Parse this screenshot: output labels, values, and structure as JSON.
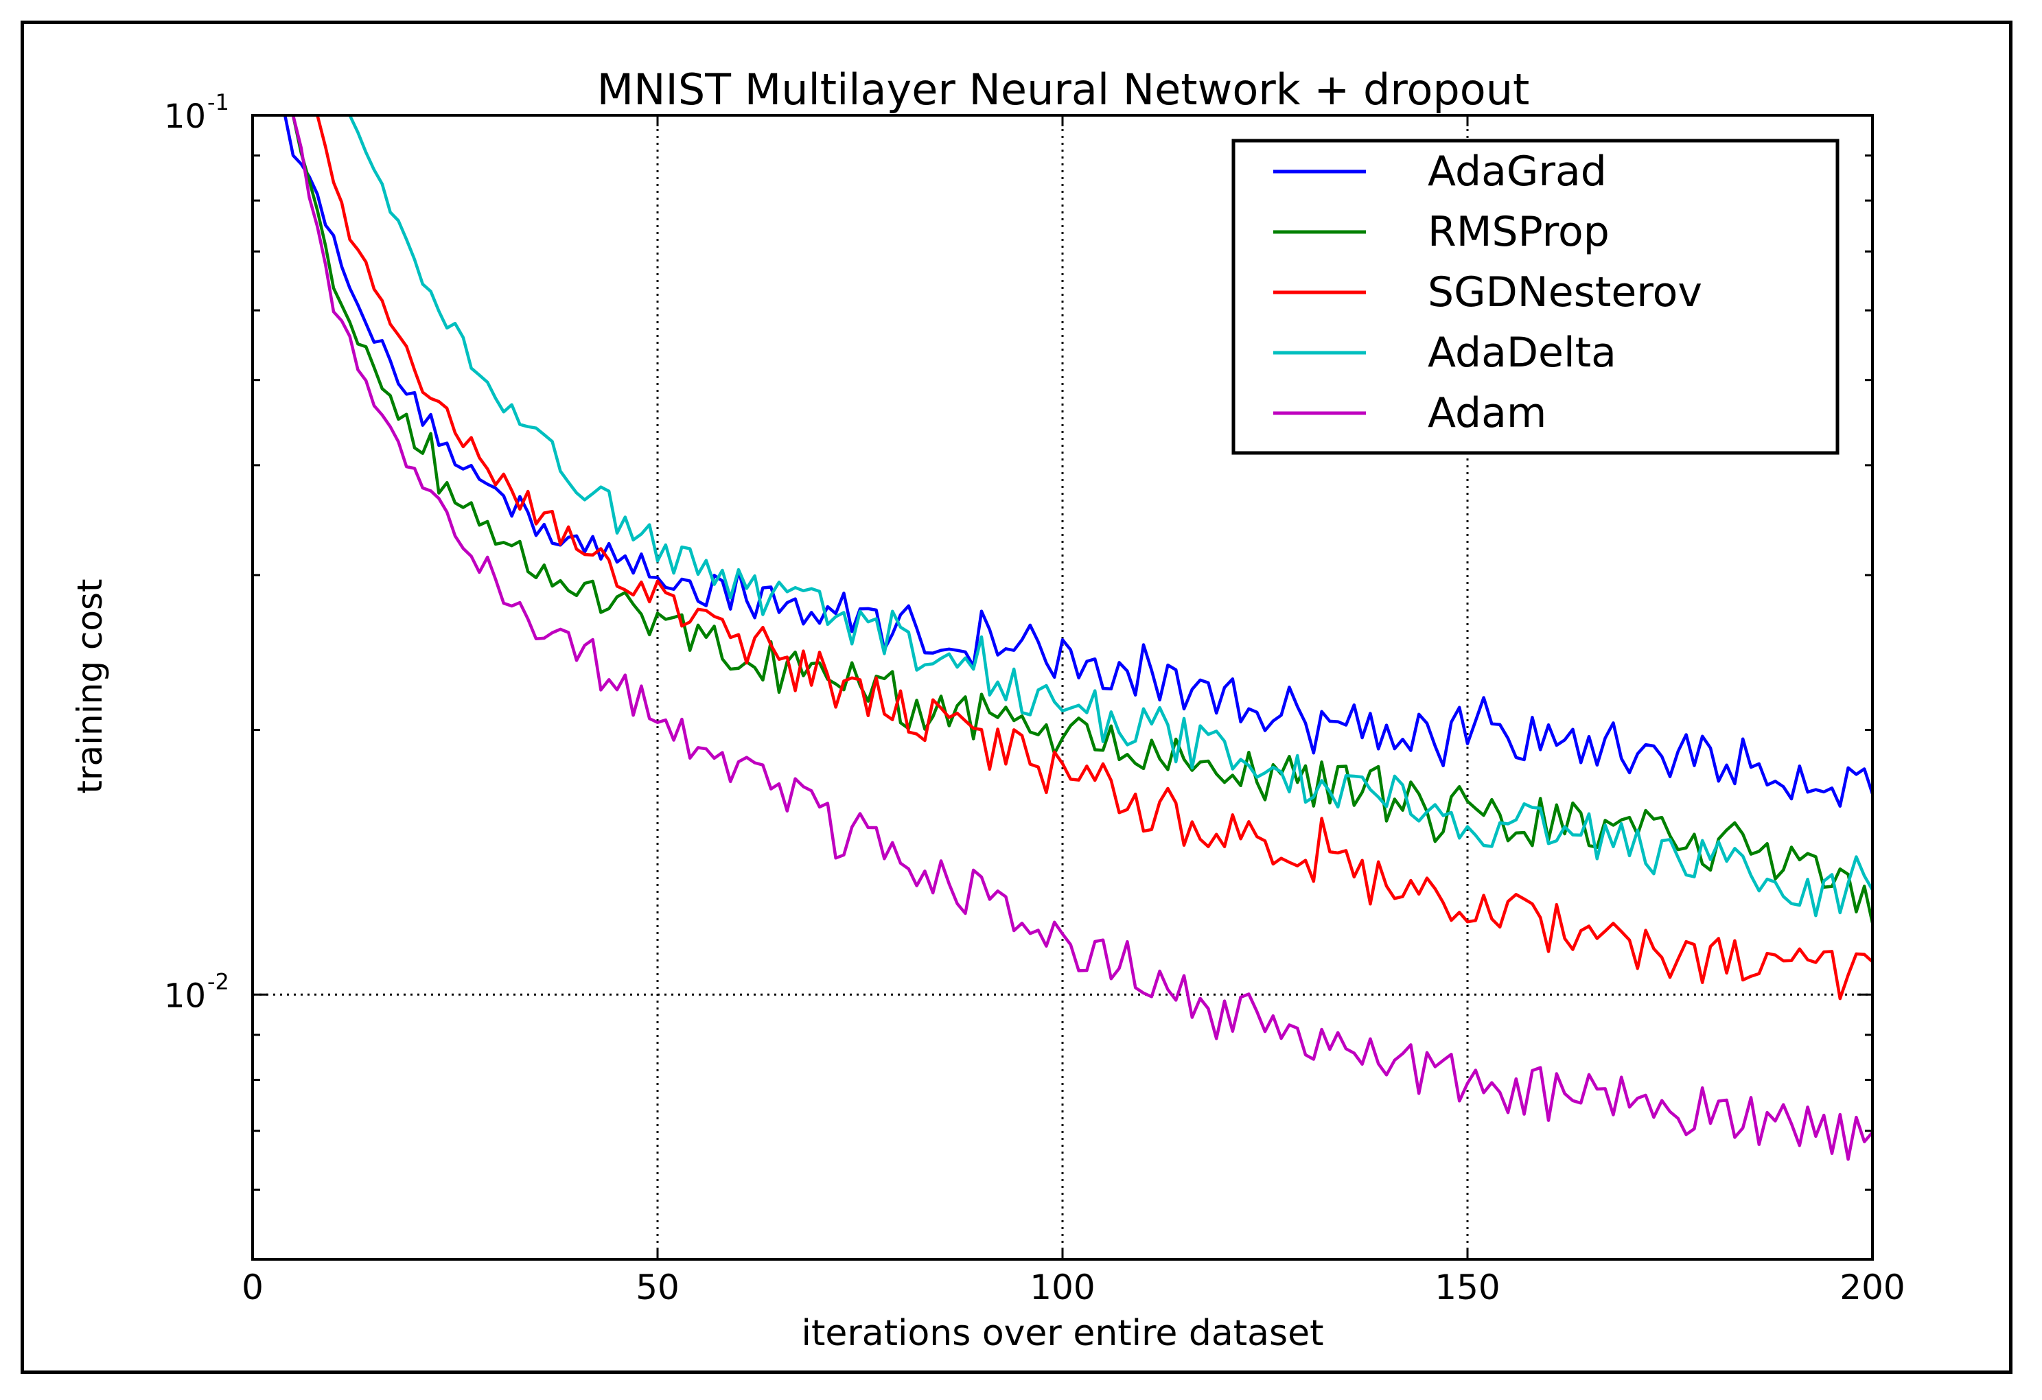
{
  "chart_data": {
    "type": "line",
    "title": "MNIST Multilayer Neural Network + dropout",
    "xlabel": "iterations over entire dataset",
    "ylabel": "training cost",
    "xlim": [
      0,
      200
    ],
    "ylim": [
      0.005,
      0.1
    ],
    "yscale": "log",
    "grid": "major, dotted",
    "legend_position": "top-right",
    "x_ticks": [
      {
        "value": 0,
        "label": "0"
      },
      {
        "value": 50,
        "label": "50"
      },
      {
        "value": 100,
        "label": "100"
      },
      {
        "value": 150,
        "label": "150"
      },
      {
        "value": 200,
        "label": "200"
      }
    ],
    "y_ticks": [
      {
        "value": 0.1,
        "base": "10",
        "exp": "-1"
      },
      {
        "value": 0.01,
        "base": "10",
        "exp": "-2"
      }
    ],
    "series": [
      {
        "name": "AdaGrad",
        "color": "#0000ff",
        "x": [
          4,
          10,
          15,
          20,
          25,
          30,
          35,
          40,
          45,
          50,
          55,
          60,
          65,
          70,
          75,
          80,
          85,
          90,
          95,
          100,
          105,
          110,
          115,
          120,
          125,
          130,
          135,
          140,
          145,
          150,
          155,
          160,
          165,
          170,
          175,
          180,
          185,
          190,
          195,
          200
        ],
        "y": [
          0.1,
          0.072,
          0.056,
          0.047,
          0.041,
          0.037,
          0.0345,
          0.0325,
          0.031,
          0.0305,
          0.0295,
          0.0285,
          0.0278,
          0.0272,
          0.0268,
          0.0262,
          0.0255,
          0.0248,
          0.0243,
          0.024,
          0.0233,
          0.0228,
          0.0222,
          0.0218,
          0.0213,
          0.0208,
          0.0205,
          0.0202,
          0.02,
          0.0198,
          0.0196,
          0.0194,
          0.0192,
          0.019,
          0.0188,
          0.0185,
          0.0182,
          0.0178,
          0.0176,
          0.0172
        ]
      },
      {
        "name": "RMSProp",
        "color": "#008000",
        "x": [
          5,
          10,
          15,
          20,
          25,
          30,
          35,
          40,
          45,
          50,
          55,
          60,
          65,
          70,
          75,
          80,
          85,
          90,
          95,
          100,
          105,
          110,
          115,
          120,
          125,
          130,
          135,
          140,
          145,
          150,
          155,
          160,
          165,
          170,
          175,
          180,
          185,
          190,
          195,
          200
        ],
        "y": [
          0.1,
          0.065,
          0.051,
          0.043,
          0.037,
          0.0335,
          0.031,
          0.029,
          0.0275,
          0.0262,
          0.0252,
          0.0243,
          0.0235,
          0.0228,
          0.0222,
          0.0217,
          0.0212,
          0.0207,
          0.0203,
          0.02,
          0.0195,
          0.019,
          0.0186,
          0.0182,
          0.0178,
          0.0175,
          0.0172,
          0.0168,
          0.0165,
          0.0162,
          0.016,
          0.0157,
          0.0155,
          0.0152,
          0.015,
          0.0148,
          0.0146,
          0.0144,
          0.0141,
          0.0128
        ]
      },
      {
        "name": "SGDNesterov",
        "color": "#ff0000",
        "x": [
          8,
          12,
          17,
          22,
          27,
          32,
          37,
          42,
          47,
          52,
          57,
          62,
          67,
          72,
          77,
          82,
          87,
          92,
          97,
          102,
          107,
          112,
          117,
          122,
          127,
          132,
          137,
          142,
          147,
          152,
          157,
          162,
          167,
          172,
          177,
          182,
          187,
          192,
          197,
          200
        ],
        "y": [
          0.1,
          0.073,
          0.058,
          0.048,
          0.042,
          0.0375,
          0.034,
          0.0315,
          0.0295,
          0.0278,
          0.0262,
          0.0248,
          0.0235,
          0.0225,
          0.0215,
          0.0207,
          0.0198,
          0.019,
          0.0183,
          0.0176,
          0.0168,
          0.0162,
          0.0156,
          0.015,
          0.0145,
          0.014,
          0.0135,
          0.0131,
          0.0127,
          0.0124,
          0.0121,
          0.0118,
          0.0115,
          0.0113,
          0.0111,
          0.0109,
          0.0107,
          0.0106,
          0.0106,
          0.0105
        ]
      },
      {
        "name": "AdaDelta",
        "color": "#00bfbf",
        "x": [
          12,
          17,
          22,
          27,
          32,
          37,
          42,
          47,
          52,
          57,
          62,
          67,
          72,
          77,
          82,
          87,
          92,
          97,
          102,
          107,
          112,
          117,
          122,
          127,
          132,
          137,
          142,
          147,
          152,
          157,
          162,
          167,
          172,
          177,
          182,
          187,
          192,
          197,
          200
        ],
        "y": [
          0.1,
          0.078,
          0.063,
          0.053,
          0.046,
          0.041,
          0.0372,
          0.034,
          0.0315,
          0.0297,
          0.0285,
          0.0275,
          0.0265,
          0.0255,
          0.0245,
          0.0236,
          0.0228,
          0.022,
          0.0212,
          0.0205,
          0.0198,
          0.0192,
          0.0186,
          0.018,
          0.0175,
          0.017,
          0.0166,
          0.0162,
          0.0158,
          0.0155,
          0.0152,
          0.0149,
          0.0146,
          0.0143,
          0.014,
          0.0137,
          0.0134,
          0.0131,
          0.0126
        ]
      },
      {
        "name": "Adam",
        "color": "#bf00bf",
        "x": [
          5,
          10,
          15,
          20,
          25,
          30,
          35,
          40,
          45,
          50,
          55,
          60,
          65,
          70,
          75,
          80,
          85,
          90,
          95,
          100,
          105,
          110,
          115,
          120,
          125,
          130,
          135,
          140,
          145,
          150,
          155,
          160,
          165,
          170,
          175,
          180,
          185,
          190,
          195,
          200
        ],
        "y": [
          0.1,
          0.061,
          0.047,
          0.039,
          0.0335,
          0.0295,
          0.0265,
          0.0242,
          0.0223,
          0.0207,
          0.0193,
          0.018,
          0.0169,
          0.0159,
          0.015,
          0.0142,
          0.0135,
          0.0128,
          0.0122,
          0.0116,
          0.0111,
          0.0106,
          0.0101,
          0.0097,
          0.0093,
          0.009,
          0.0087,
          0.0084,
          0.0082,
          0.008,
          0.0078,
          0.0077,
          0.0076,
          0.0075,
          0.0074,
          0.0073,
          0.0072,
          0.0071,
          0.007,
          0.0069
        ]
      }
    ]
  }
}
